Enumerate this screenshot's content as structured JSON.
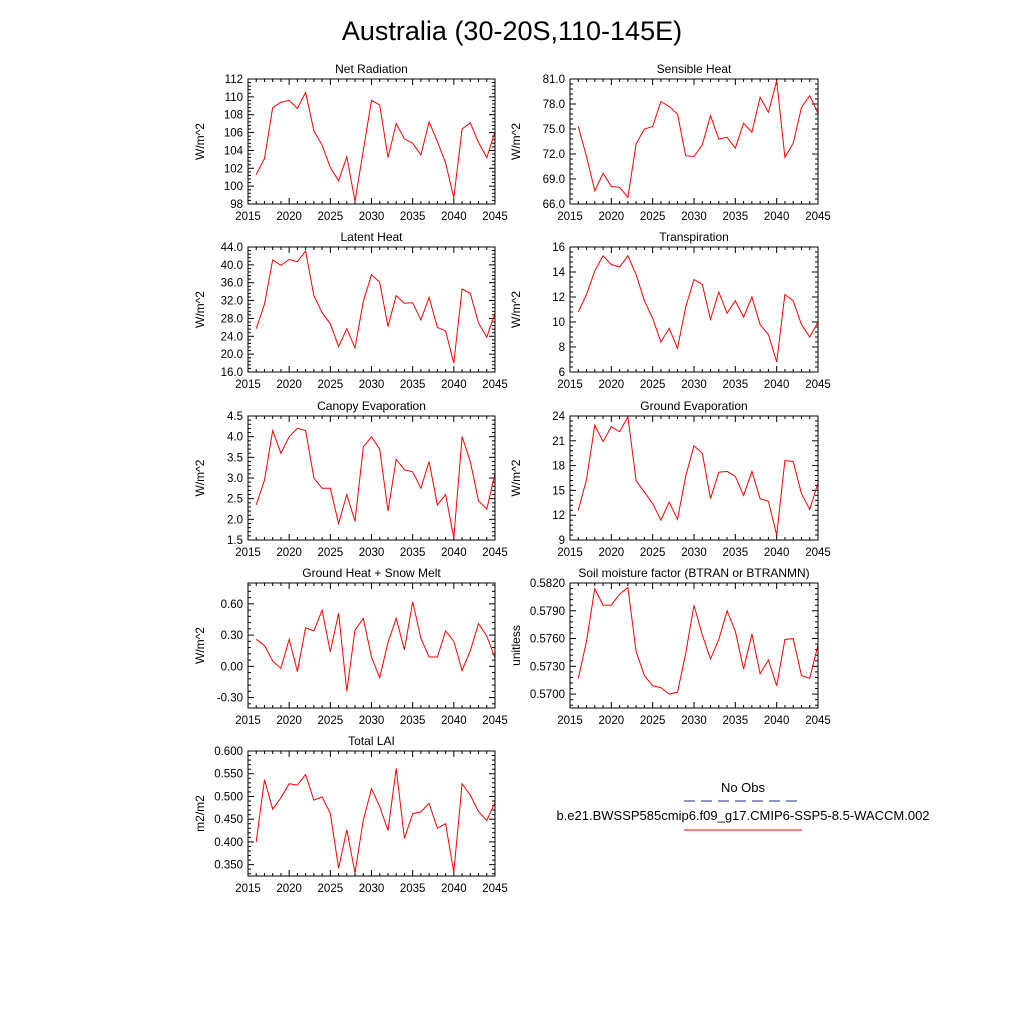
{
  "figure": {
    "title": "Australia (30-20S,110-145E)",
    "series_color": "#ff0000",
    "obs_color": "#1f2f8f"
  },
  "legend": {
    "obs_label": "No Obs",
    "model_label": "b.e21.BWSSP585cmip6.f09_g17.CMIP6-SSP5-8.5-WACCM.002"
  },
  "chart_data": [
    {
      "type": "line",
      "title": "Net Radiation",
      "ylabel": "W/m^2",
      "xlim": [
        2015,
        2045
      ],
      "xticks": [
        2015,
        2020,
        2025,
        2030,
        2035,
        2040,
        2045
      ],
      "ylim": [
        98,
        112
      ],
      "yticks": [
        "98",
        "100",
        "102",
        "104",
        "106",
        "108",
        "110",
        "112"
      ],
      "x": [
        2016,
        2017,
        2018,
        2019,
        2020,
        2021,
        2022,
        2023,
        2024,
        2025,
        2026,
        2027,
        2028,
        2029,
        2030,
        2031,
        2032,
        2033,
        2034,
        2035,
        2036,
        2037,
        2038,
        2039,
        2040,
        2041,
        2042,
        2043,
        2044,
        2045
      ],
      "series": [
        {
          "values": [
            101.3,
            103.1,
            108.8,
            109.4,
            109.6,
            108.7,
            110.5,
            106.2,
            104.6,
            102.1,
            100.6,
            103.3,
            98.3,
            104.0,
            109.6,
            109.1,
            103.2,
            107.0,
            105.3,
            104.8,
            103.5,
            107.2,
            105.0,
            102.6,
            98.7,
            106.4,
            107.1,
            104.9,
            103.2,
            106.1
          ]
        }
      ]
    },
    {
      "type": "line",
      "title": "Sensible Heat",
      "ylabel": "W/m^2",
      "xlim": [
        2015,
        2045
      ],
      "xticks": [
        2015,
        2020,
        2025,
        2030,
        2035,
        2040,
        2045
      ],
      "ylim": [
        66.0,
        81.0
      ],
      "yticks": [
        "66.0",
        "69.0",
        "72.0",
        "75.0",
        "78.0",
        "81.0"
      ],
      "x": [
        2016,
        2017,
        2018,
        2019,
        2020,
        2021,
        2022,
        2023,
        2024,
        2025,
        2026,
        2027,
        2028,
        2029,
        2030,
        2031,
        2032,
        2033,
        2034,
        2035,
        2036,
        2037,
        2038,
        2039,
        2040,
        2041,
        2042,
        2043,
        2044,
        2045
      ],
      "series": [
        {
          "values": [
            75.3,
            71.7,
            67.6,
            69.7,
            68.1,
            68.0,
            66.8,
            73.2,
            75.0,
            75.3,
            78.3,
            77.7,
            76.8,
            71.8,
            71.7,
            73.1,
            76.6,
            73.8,
            74.0,
            72.7,
            75.7,
            74.6,
            78.8,
            77.0,
            80.8,
            71.6,
            73.3,
            77.6,
            79.0,
            76.9
          ]
        }
      ]
    },
    {
      "type": "line",
      "title": "Latent Heat",
      "ylabel": "W/m^2",
      "xlim": [
        2015,
        2045
      ],
      "xticks": [
        2015,
        2020,
        2025,
        2030,
        2035,
        2040,
        2045
      ],
      "ylim": [
        16.0,
        44.0
      ],
      "yticks": [
        "16.0",
        "20.0",
        "24.0",
        "28.0",
        "32.0",
        "36.0",
        "40.0",
        "44.0"
      ],
      "x": [
        2016,
        2017,
        2018,
        2019,
        2020,
        2021,
        2022,
        2023,
        2024,
        2025,
        2026,
        2027,
        2028,
        2029,
        2030,
        2031,
        2032,
        2033,
        2034,
        2035,
        2036,
        2037,
        2038,
        2039,
        2040,
        2041,
        2042,
        2043,
        2044,
        2045
      ],
      "series": [
        {
          "values": [
            25.7,
            31.2,
            41.1,
            39.9,
            41.2,
            40.7,
            43.1,
            33.1,
            29.3,
            26.8,
            21.7,
            25.7,
            21.4,
            31.8,
            37.8,
            36.1,
            26.2,
            33.1,
            31.4,
            31.5,
            27.7,
            32.7,
            26.0,
            25.2,
            18.0,
            34.6,
            33.6,
            27.0,
            23.8,
            29.2
          ]
        }
      ]
    },
    {
      "type": "line",
      "title": "Transpiration",
      "ylabel": "W/m^2",
      "xlim": [
        2015,
        2045
      ],
      "xticks": [
        2015,
        2020,
        2025,
        2030,
        2035,
        2040,
        2045
      ],
      "ylim": [
        6,
        16
      ],
      "yticks": [
        "6",
        "8",
        "10",
        "12",
        "14",
        "16"
      ],
      "x": [
        2016,
        2017,
        2018,
        2019,
        2020,
        2021,
        2022,
        2023,
        2024,
        2025,
        2026,
        2027,
        2028,
        2029,
        2030,
        2031,
        2032,
        2033,
        2034,
        2035,
        2036,
        2037,
        2038,
        2039,
        2040,
        2041,
        2042,
        2043,
        2044,
        2045
      ],
      "series": [
        {
          "values": [
            10.8,
            12.2,
            14.1,
            15.3,
            14.6,
            14.4,
            15.3,
            13.8,
            11.7,
            10.3,
            8.4,
            9.5,
            7.9,
            11.2,
            13.4,
            13.0,
            10.2,
            12.4,
            10.7,
            11.7,
            10.4,
            12.0,
            9.8,
            9.0,
            6.8,
            12.2,
            11.7,
            9.8,
            8.8,
            10.0
          ]
        }
      ]
    },
    {
      "type": "line",
      "title": "Canopy Evaporation",
      "ylabel": "W/m^2",
      "xlim": [
        2015,
        2045
      ],
      "xticks": [
        2015,
        2020,
        2025,
        2030,
        2035,
        2040,
        2045
      ],
      "ylim": [
        1.5,
        4.5
      ],
      "yticks": [
        "1.5",
        "2.0",
        "2.5",
        "3.0",
        "3.5",
        "4.0",
        "4.5"
      ],
      "x": [
        2016,
        2017,
        2018,
        2019,
        2020,
        2021,
        2022,
        2023,
        2024,
        2025,
        2026,
        2027,
        2028,
        2029,
        2030,
        2031,
        2032,
        2033,
        2034,
        2035,
        2036,
        2037,
        2038,
        2039,
        2040,
        2041,
        2042,
        2043,
        2044,
        2045
      ],
      "series": [
        {
          "values": [
            2.35,
            2.95,
            4.15,
            3.6,
            4.0,
            4.2,
            4.15,
            3.0,
            2.75,
            2.75,
            1.9,
            2.6,
            1.95,
            3.75,
            4.0,
            3.7,
            2.2,
            3.45,
            3.2,
            3.15,
            2.75,
            3.4,
            2.35,
            2.6,
            1.55,
            4.0,
            3.4,
            2.45,
            2.25,
            3.1
          ]
        }
      ]
    },
    {
      "type": "line",
      "title": "Ground Evaporation",
      "ylabel": "W/m^2",
      "xlim": [
        2015,
        2045
      ],
      "xticks": [
        2015,
        2020,
        2025,
        2030,
        2035,
        2040,
        2045
      ],
      "ylim": [
        9,
        24
      ],
      "yticks": [
        "9",
        "12",
        "15",
        "18",
        "21",
        "24"
      ],
      "x": [
        2016,
        2017,
        2018,
        2019,
        2020,
        2021,
        2022,
        2023,
        2024,
        2025,
        2026,
        2027,
        2028,
        2029,
        2030,
        2031,
        2032,
        2033,
        2034,
        2035,
        2036,
        2037,
        2038,
        2039,
        2040,
        2041,
        2042,
        2043,
        2044,
        2045
      ],
      "series": [
        {
          "values": [
            12.6,
            16.3,
            22.9,
            20.9,
            22.7,
            22.1,
            23.9,
            16.2,
            14.8,
            13.4,
            11.4,
            13.6,
            11.5,
            16.7,
            20.4,
            19.5,
            14.0,
            17.2,
            17.3,
            16.7,
            14.4,
            17.3,
            14.0,
            13.7,
            9.6,
            18.6,
            18.5,
            14.6,
            12.7,
            15.9
          ]
        }
      ]
    },
    {
      "type": "line",
      "title": "Ground Heat + Snow Melt",
      "ylabel": "W/m^2",
      "xlim": [
        2015,
        2045
      ],
      "xticks": [
        2015,
        2020,
        2025,
        2030,
        2035,
        2040,
        2045
      ],
      "ylim": [
        -0.4,
        0.8
      ],
      "yticks": [
        "-0.30",
        "0.00",
        "0.30",
        "0.60"
      ],
      "x": [
        2016,
        2017,
        2018,
        2019,
        2020,
        2021,
        2022,
        2023,
        2024,
        2025,
        2026,
        2027,
        2028,
        2029,
        2030,
        2031,
        2032,
        2033,
        2034,
        2035,
        2036,
        2037,
        2038,
        2039,
        2040,
        2041,
        2042,
        2043,
        2044,
        2045
      ],
      "series": [
        {
          "values": [
            0.26,
            0.2,
            0.05,
            -0.02,
            0.26,
            -0.05,
            0.37,
            0.34,
            0.54,
            0.14,
            0.51,
            -0.24,
            0.35,
            0.46,
            0.09,
            -0.11,
            0.23,
            0.46,
            0.16,
            0.62,
            0.27,
            0.09,
            0.09,
            0.34,
            0.24,
            -0.04,
            0.15,
            0.41,
            0.29,
            0.08
          ]
        }
      ]
    },
    {
      "type": "line",
      "title": "Soil moisture factor (BTRAN or BTRANMN)",
      "ylabel": "unitless",
      "xlim": [
        2015,
        2045
      ],
      "xticks": [
        2015,
        2020,
        2025,
        2030,
        2035,
        2040,
        2045
      ],
      "ylim": [
        0.5685,
        0.582
      ],
      "yticks": [
        "0.5700",
        "0.5730",
        "0.5760",
        "0.5790",
        "0.5820"
      ],
      "x": [
        2016,
        2017,
        2018,
        2019,
        2020,
        2021,
        2022,
        2023,
        2024,
        2025,
        2026,
        2027,
        2028,
        2029,
        2030,
        2031,
        2032,
        2033,
        2034,
        2035,
        2036,
        2037,
        2038,
        2039,
        2040,
        2041,
        2042,
        2043,
        2044,
        2045
      ],
      "series": [
        {
          "values": [
            0.5717,
            0.5757,
            0.5814,
            0.5796,
            0.5796,
            0.5808,
            0.5815,
            0.5746,
            0.572,
            0.5709,
            0.5707,
            0.57,
            0.5702,
            0.5744,
            0.5796,
            0.5764,
            0.5738,
            0.5759,
            0.579,
            0.5768,
            0.5727,
            0.5765,
            0.5722,
            0.5737,
            0.5709,
            0.5759,
            0.576,
            0.572,
            0.5717,
            0.5753
          ]
        }
      ]
    },
    {
      "type": "line",
      "title": "Total LAI",
      "ylabel": "m2/m2",
      "xlim": [
        2015,
        2045
      ],
      "xticks": [
        2015,
        2020,
        2025,
        2030,
        2035,
        2040,
        2045
      ],
      "ylim": [
        0.325,
        0.6
      ],
      "yticks": [
        "0.350",
        "0.400",
        "0.450",
        "0.500",
        "0.550",
        "0.600"
      ],
      "x": [
        2016,
        2017,
        2018,
        2019,
        2020,
        2021,
        2022,
        2023,
        2024,
        2025,
        2026,
        2027,
        2028,
        2029,
        2030,
        2031,
        2032,
        2033,
        2034,
        2035,
        2036,
        2037,
        2038,
        2039,
        2040,
        2041,
        2042,
        2043,
        2044,
        2045
      ],
      "series": [
        {
          "values": [
            0.4,
            0.537,
            0.472,
            0.497,
            0.528,
            0.525,
            0.548,
            0.492,
            0.499,
            0.463,
            0.342,
            0.427,
            0.332,
            0.448,
            0.517,
            0.478,
            0.425,
            0.562,
            0.408,
            0.462,
            0.466,
            0.485,
            0.43,
            0.44,
            0.333,
            0.528,
            0.503,
            0.467,
            0.447,
            0.487
          ]
        }
      ]
    }
  ]
}
